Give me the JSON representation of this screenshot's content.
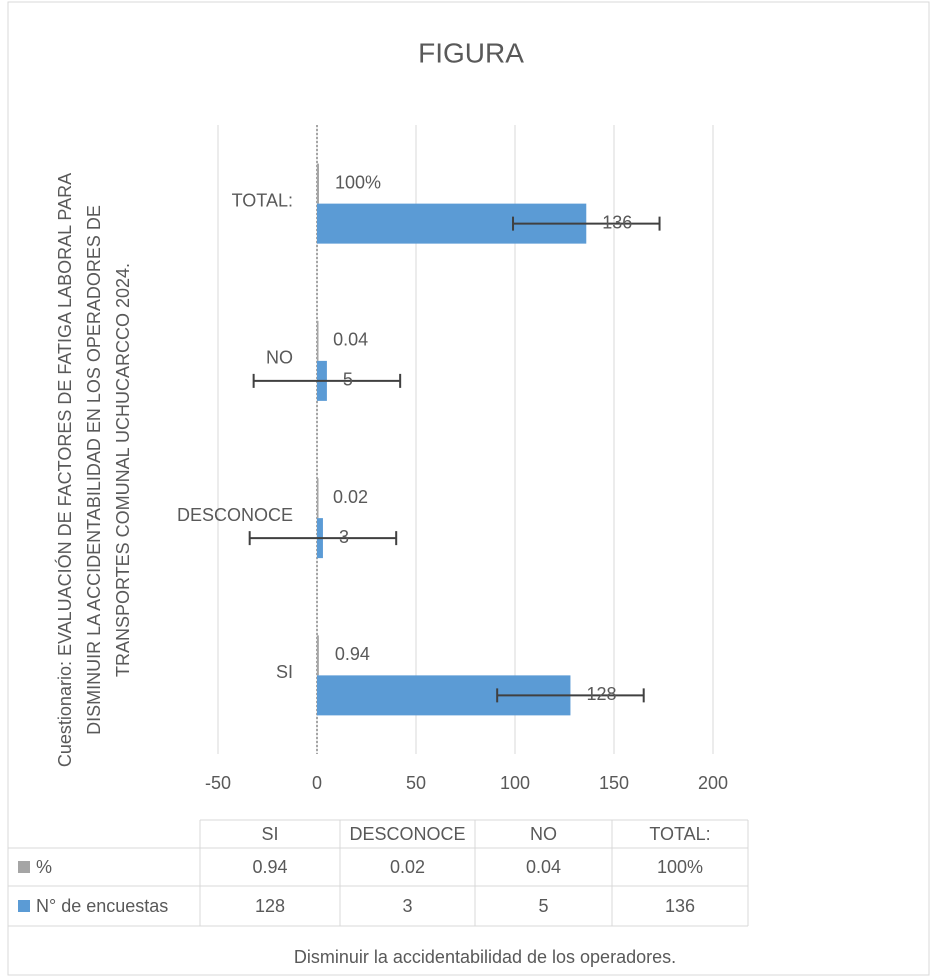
{
  "chart_data": {
    "type": "bar",
    "orientation": "horizontal",
    "title": "FIGURA",
    "ylabel": [
      "Cuestionario: EVALUACIÓN DE FACTORES DE FATIGA LABORAL PARA",
      "DISMINUIR LA ACCIDENTABILIDAD EN LOS  OPERADORES DE",
      "TRANSPORTES COMUNAL UCHUCARCCO 2024."
    ],
    "xlabel": "Disminuir la accidentabilidad de los operadores.",
    "categories": [
      "SI",
      "DESCONOCE",
      "NO",
      "TOTAL:"
    ],
    "series": [
      {
        "name": "%",
        "color": "#a5a5a5",
        "values": [
          0.94,
          0.02,
          0.04,
          1
        ],
        "value_labels": [
          "0.94",
          "0.02",
          "0.04",
          "100%"
        ]
      },
      {
        "name": "N° de encuestas",
        "color": "#5b9bd5",
        "values": [
          128,
          3,
          5,
          136
        ],
        "errors": [
          37,
          37,
          37,
          37
        ]
      }
    ],
    "xlim": [
      -50,
      200
    ],
    "xticks": [
      -50,
      0,
      50,
      100,
      150,
      200
    ],
    "grid": true,
    "data_table": true
  }
}
